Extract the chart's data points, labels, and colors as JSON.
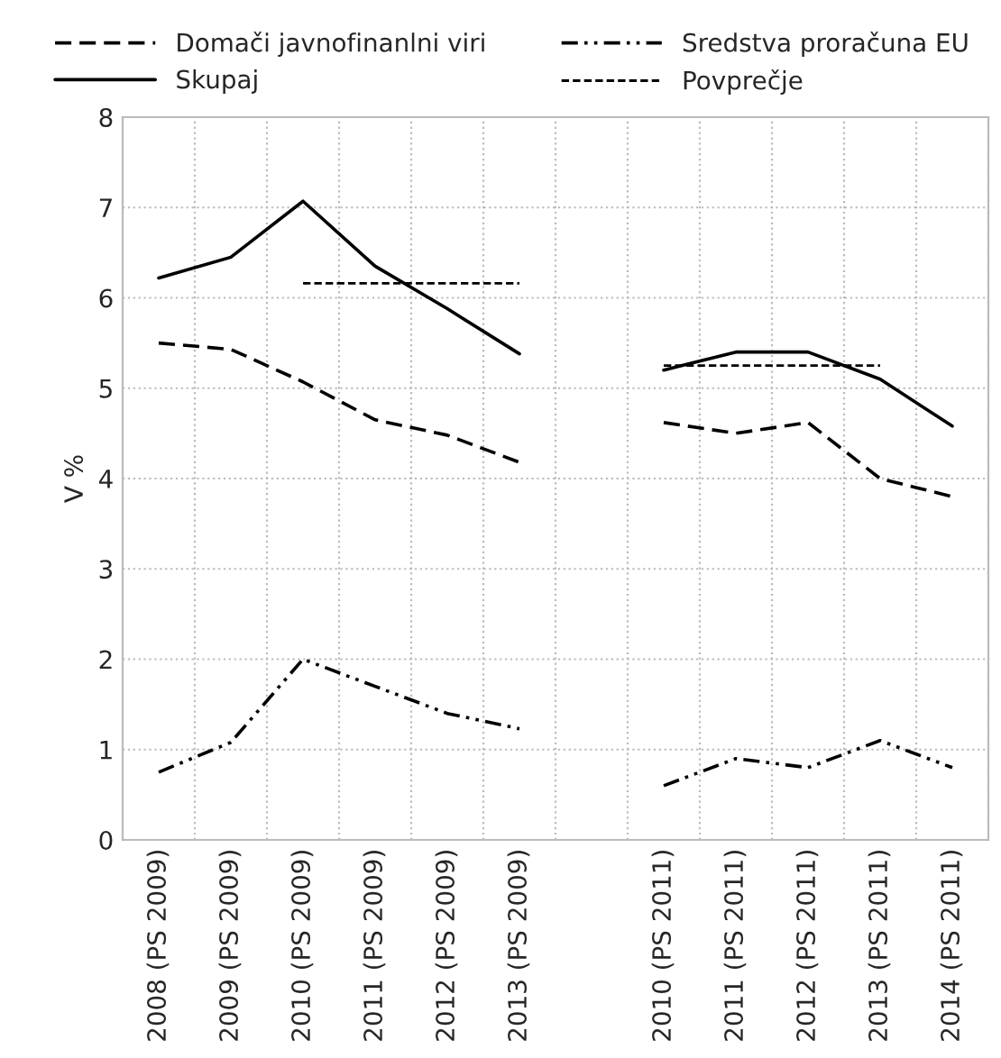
{
  "chart_data": {
    "type": "line",
    "ylabel": "V %",
    "categories": [
      "2008 (PS 2009)",
      "2009 (PS 2009)",
      "2010 (PS 2009)",
      "2011 (PS 2009)",
      "2012 (PS 2009)",
      "2013 (PS 2009)",
      null,
      "2010 (PS 2011)",
      "2011 (PS 2011)",
      "2012 (PS 2011)",
      "2013 (PS 2011)",
      "2014 (PS 2011)"
    ],
    "series": [
      {
        "name": "Domači javnofinanlni viri",
        "color": "#000000",
        "line_style": "dashed",
        "values": [
          5.5,
          5.43,
          5.07,
          4.65,
          4.48,
          4.18,
          null,
          4.62,
          4.5,
          4.62,
          4.0,
          3.8
        ]
      },
      {
        "name": "Sredstva proračuna EU",
        "color": "#000000",
        "line_style": "dashdot",
        "values": [
          0.75,
          1.08,
          2.0,
          1.7,
          1.4,
          1.23,
          null,
          0.6,
          0.9,
          0.8,
          1.1,
          0.8
        ]
      },
      {
        "name": "Skupaj",
        "color": "#000000",
        "line_style": "solid",
        "values": [
          6.22,
          6.45,
          7.07,
          6.35,
          5.88,
          5.38,
          null,
          5.2,
          5.4,
          5.4,
          5.1,
          4.58
        ]
      },
      {
        "name": "Povprečje",
        "color": "#000000",
        "line_style": "dotted",
        "values": [
          null,
          null,
          6.16,
          6.16,
          6.16,
          6.16,
          null,
          5.25,
          5.25,
          5.25,
          5.25,
          null
        ]
      }
    ],
    "ylim": [
      0,
      8
    ],
    "yticks": [
      0,
      1,
      2,
      3,
      4,
      5,
      6,
      7,
      8
    ],
    "grid": true,
    "legend": "top",
    "marker": "none"
  }
}
